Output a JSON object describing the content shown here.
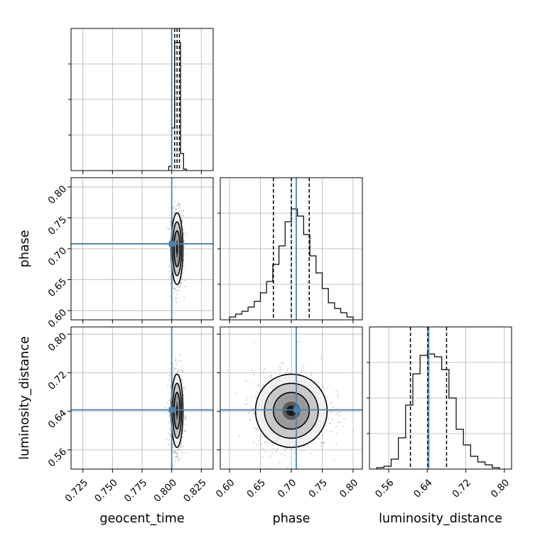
{
  "chart_data": {
    "type": "corner",
    "parameters": [
      {
        "label": "geocent_time",
        "range": [
          0.715,
          0.835
        ],
        "ticks": [
          0.725,
          0.75,
          0.775,
          0.8,
          0.825
        ],
        "tick_labels": [
          "0.725",
          "0.750",
          "0.775",
          "0.800",
          "0.825"
        ],
        "truth": 0.8,
        "median": 0.8045,
        "q16": 0.8025,
        "q84": 0.8065
      },
      {
        "label": "phase",
        "range": [
          0.585,
          0.815
        ],
        "ticks": [
          0.6,
          0.65,
          0.7,
          0.75,
          0.8
        ],
        "tick_labels": [
          "0.60",
          "0.65",
          "0.70",
          "0.75",
          "0.80"
        ],
        "truth": 0.708,
        "median": 0.7,
        "q16": 0.671,
        "q84": 0.729
      },
      {
        "label": "luminosity_distance",
        "range": [
          0.52,
          0.815
        ],
        "ticks": [
          0.56,
          0.64,
          0.72,
          0.8
        ],
        "tick_labels": [
          "0.56",
          "0.64",
          "0.72",
          "0.80"
        ],
        "truth": 0.643,
        "median": 0.641,
        "q16": 0.605,
        "q84": 0.68
      }
    ],
    "histograms": [
      {
        "param": "geocent_time",
        "edges": [
          0.7975,
          0.8,
          0.8025,
          0.805,
          0.8075,
          0.81,
          0.8125
        ],
        "values": [
          0.03,
          0.3,
          0.9,
          0.9,
          0.12,
          0.01
        ]
      },
      {
        "param": "phase",
        "edges": [
          0.6,
          0.61,
          0.62,
          0.63,
          0.64,
          0.65,
          0.66,
          0.67,
          0.68,
          0.69,
          0.7,
          0.71,
          0.72,
          0.73,
          0.74,
          0.75,
          0.76,
          0.77,
          0.78,
          0.79,
          0.8
        ],
        "values": [
          0.02,
          0.04,
          0.06,
          0.09,
          0.13,
          0.19,
          0.27,
          0.39,
          0.52,
          0.69,
          0.78,
          0.73,
          0.6,
          0.45,
          0.33,
          0.22,
          0.12,
          0.08,
          0.05,
          0.02
        ]
      },
      {
        "param": "luminosity_distance",
        "edges": [
          0.535,
          0.55,
          0.565,
          0.58,
          0.595,
          0.61,
          0.625,
          0.64,
          0.655,
          0.67,
          0.685,
          0.7,
          0.715,
          0.73,
          0.745,
          0.76,
          0.775,
          0.79
        ],
        "values": [
          0.01,
          0.02,
          0.07,
          0.22,
          0.45,
          0.67,
          0.8,
          0.81,
          0.79,
          0.7,
          0.5,
          0.28,
          0.17,
          0.09,
          0.05,
          0.03,
          0.01
        ]
      }
    ],
    "pairs": [
      {
        "x": "geocent_time",
        "y": "phase",
        "center": [
          0.8045,
          0.7
        ],
        "sigma": [
          0.0025,
          0.029
        ],
        "contour_levels": [
          0.5,
          1.0,
          1.5,
          2.0
        ]
      },
      {
        "x": "geocent_time",
        "y": "luminosity_distance",
        "center": [
          0.8045,
          0.641
        ],
        "sigma": [
          0.0025,
          0.038
        ],
        "contour_levels": [
          0.5,
          1.0,
          1.5,
          2.0
        ]
      },
      {
        "x": "phase",
        "y": "luminosity_distance",
        "center": [
          0.7,
          0.641
        ],
        "sigma": [
          0.029,
          0.038
        ],
        "contour_levels": [
          0.5,
          1.0,
          1.5,
          2.0
        ]
      }
    ],
    "truth_color": "#4682b4",
    "quantile_style": "dashed",
    "grid": true
  }
}
